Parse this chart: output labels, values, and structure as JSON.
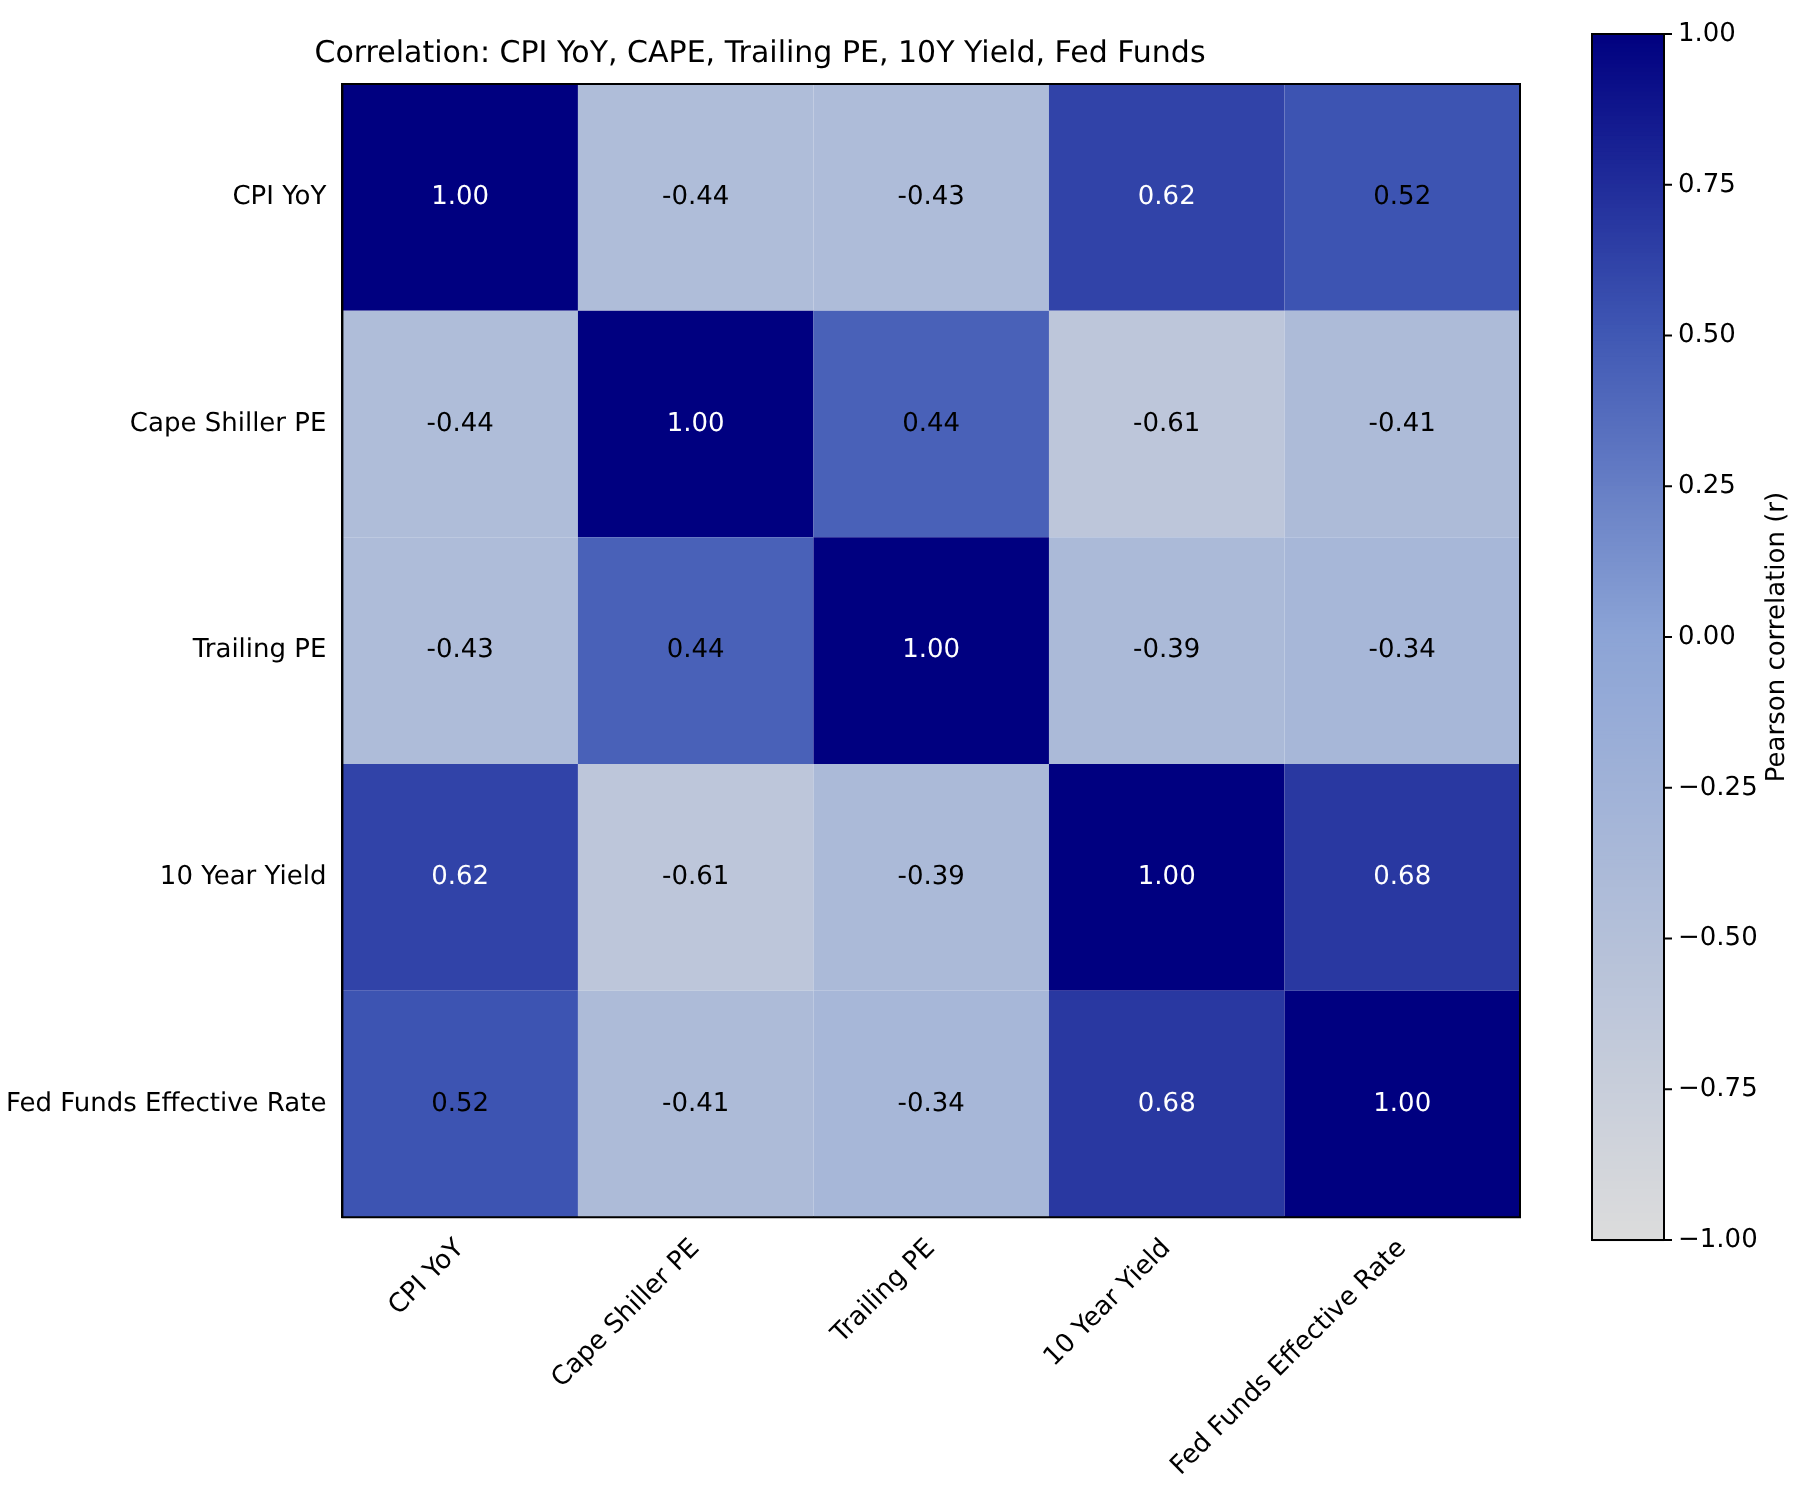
{
  "chart_data": {
    "type": "heatmap",
    "title": "Correlation: CPI YoY, CAPE, Trailing PE, 10Y Yield, Fed Funds",
    "categories": [
      "CPI YoY",
      "Cape Shiller PE",
      "Trailing PE",
      "10 Year Yield",
      "Fed Funds Effective Rate"
    ],
    "y_categories": [
      "CPI YoY",
      "Cape Shiller PE",
      "Trailing PE",
      "10 Year Yield",
      "Fed Funds Effective Rate"
    ],
    "cells": [
      [
        1.0,
        -0.44,
        -0.43,
        0.62,
        0.52
      ],
      [
        -0.44,
        1.0,
        0.44,
        -0.61,
        -0.41
      ],
      [
        -0.43,
        0.44,
        1.0,
        -0.39,
        -0.34
      ],
      [
        0.62,
        -0.61,
        -0.39,
        1.0,
        0.68
      ],
      [
        0.52,
        -0.41,
        -0.34,
        0.68,
        1.0
      ]
    ],
    "cell_labels": [
      [
        "1.00",
        "-0.44",
        "-0.43",
        "0.62",
        "0.52"
      ],
      [
        "-0.44",
        "1.00",
        "0.44",
        "-0.61",
        "-0.41"
      ],
      [
        "-0.43",
        "0.44",
        "1.00",
        "-0.39",
        "-0.34"
      ],
      [
        "0.62",
        "-0.61",
        "-0.39",
        "1.00",
        "0.68"
      ],
      [
        "0.52",
        "-0.41",
        "-0.34",
        "0.68",
        "1.00"
      ]
    ],
    "clabel": "Pearson correlation (r)",
    "clim": [
      -1,
      1
    ],
    "cticks": [
      {
        "value": -1,
        "label": "−1.00"
      },
      {
        "value": -0.75,
        "label": "−0.75"
      },
      {
        "value": -0.5,
        "label": "−0.50"
      },
      {
        "value": -0.25,
        "label": "−0.25"
      },
      {
        "value": 0,
        "label": "0.00"
      },
      {
        "value": 0.25,
        "label": "0.25"
      },
      {
        "value": 0.5,
        "label": "0.50"
      },
      {
        "value": 0.75,
        "label": "0.75"
      },
      {
        "value": 1,
        "label": "1.00"
      }
    ]
  }
}
